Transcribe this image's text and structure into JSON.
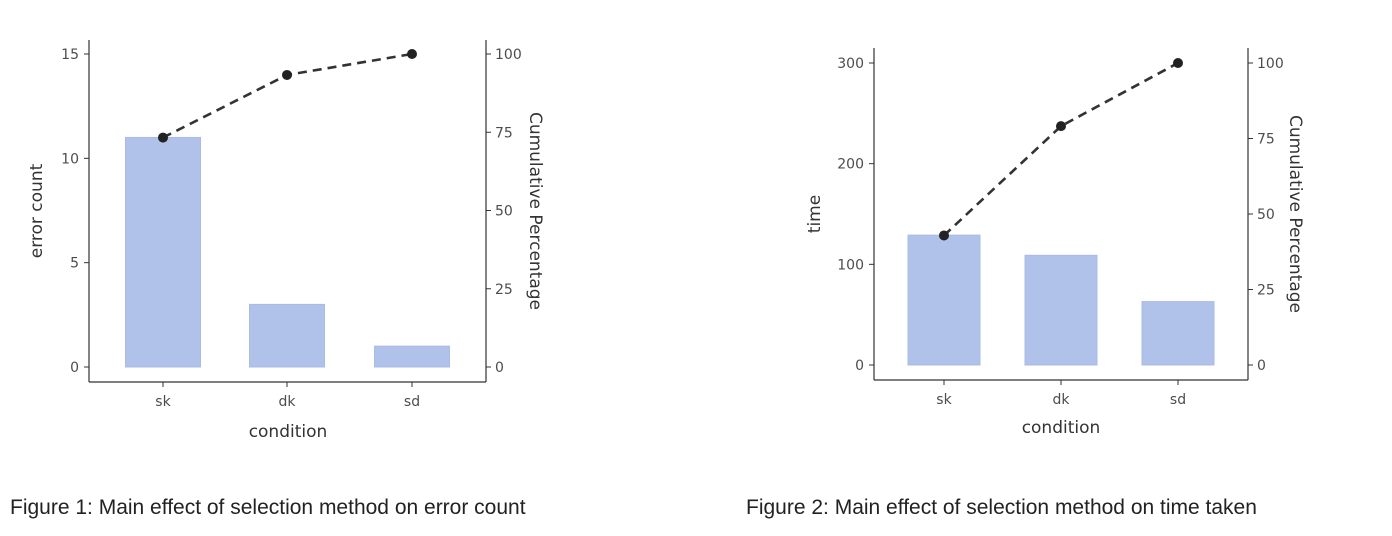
{
  "chart_data": [
    {
      "type": "bar",
      "categories": [
        "sk",
        "dk",
        "sd"
      ],
      "values": [
        11,
        3,
        1
      ],
      "xlabel": "condition",
      "ylabel": "error count",
      "ylim": [
        0,
        15
      ],
      "yticks": [
        0,
        5,
        10,
        15
      ],
      "y2label": "Cumulative Percentage",
      "y2lim": [
        0,
        100
      ],
      "y2ticks": [
        0,
        25,
        50,
        75,
        100
      ],
      "cumulative_percentage": [
        73.3,
        93.3,
        100
      ],
      "bar_color": "#b0c1ea",
      "line_color": "#333333",
      "grid": false,
      "caption": "Figure 1: Main effect of selection method on error count"
    },
    {
      "type": "bar",
      "categories": [
        "sk",
        "dk",
        "sd"
      ],
      "values": [
        129,
        109,
        63
      ],
      "xlabel": "condition",
      "ylabel": "time",
      "ylim": [
        0,
        300
      ],
      "yticks": [
        0,
        100,
        200,
        300
      ],
      "y2label": "Cumulative Percentage",
      "y2lim": [
        0,
        100
      ],
      "y2ticks": [
        0,
        25,
        50,
        75,
        100
      ],
      "cumulative_percentage": [
        42.9,
        79.1,
        100
      ],
      "bar_color": "#b0c1ea",
      "line_color": "#333333",
      "grid": false,
      "caption": "Figure 2: Main effect of selection method on time taken"
    }
  ]
}
